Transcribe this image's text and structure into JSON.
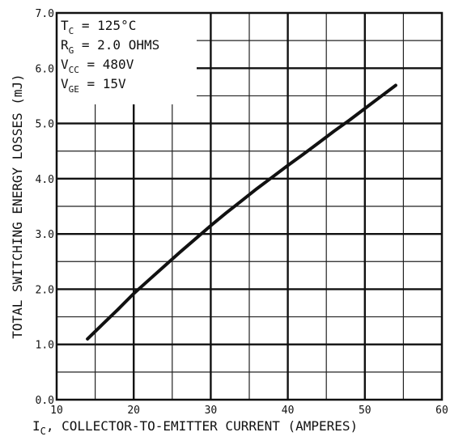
{
  "chart_data": {
    "type": "line",
    "xlabel": {
      "main": "I",
      "sub": "C",
      "rest": ",  COLLECTOR-TO-EMITTER CURRENT  (AMPERES)"
    },
    "ylabel": "TOTAL SWITCHING ENERGY LOSSES  (mJ)",
    "xlim": [
      10,
      60
    ],
    "ylim": [
      0.0,
      7.0
    ],
    "x_ticks": [
      "10",
      "20",
      "30",
      "40",
      "50",
      "60"
    ],
    "y_ticks": [
      "0.0",
      "1.0",
      "2.0",
      "3.0",
      "4.0",
      "5.0",
      "6.0",
      "7.0"
    ],
    "x_minor_step": 5,
    "y_minor_step": 0.5,
    "grid": true,
    "conditions": [
      {
        "main": "T",
        "sub": "C",
        "rest": " = 125°C"
      },
      {
        "main": "R",
        "sub": "G",
        "rest": " = 2.0 OHMS"
      },
      {
        "main": "V",
        "sub": "CC",
        "rest": " = 480V"
      },
      {
        "main": "V",
        "sub": "GE",
        "rest": " = 15V"
      }
    ],
    "series": [
      {
        "x": [
          14,
          16,
          18,
          20,
          22,
          24,
          26,
          28,
          30,
          32,
          34,
          36,
          38,
          40,
          42,
          44,
          46,
          48,
          50,
          52,
          54
        ],
        "y": [
          1.1,
          1.37,
          1.64,
          1.92,
          2.17,
          2.42,
          2.67,
          2.91,
          3.15,
          3.38,
          3.6,
          3.82,
          4.03,
          4.24,
          4.44,
          4.65,
          4.86,
          5.06,
          5.27,
          5.48,
          5.69
        ]
      }
    ]
  }
}
